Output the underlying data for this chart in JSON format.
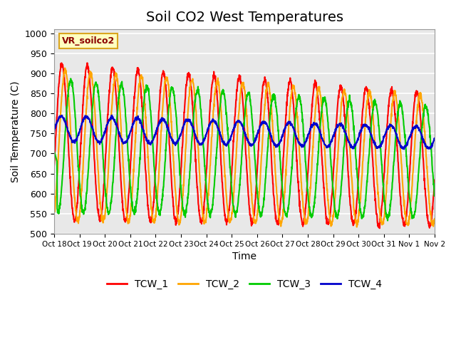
{
  "title": "Soil CO2 West Temperatures",
  "xlabel": "Time",
  "ylabel": "Soil Temperature (C)",
  "ylim": [
    500,
    1010
  ],
  "yticks": [
    500,
    550,
    600,
    650,
    700,
    750,
    800,
    850,
    900,
    950,
    1000
  ],
  "x_tick_labels": [
    "Oct 18",
    "Oct 19",
    "Oct 20",
    "Oct 21",
    "Oct 22",
    "Oct 23",
    "Oct 24",
    "Oct 25",
    "Oct 26",
    "Oct 27",
    "Oct 28",
    "Oct 29",
    "Oct 30",
    "Oct 31",
    "Nov 1",
    "Nov 2"
  ],
  "annotation_text": "VR_soilco2",
  "annotation_color": "#8B0000",
  "annotation_bg": "#FFFFC0",
  "annotation_border": "#DAA520",
  "series_colors": [
    "#FF0000",
    "#FFA500",
    "#00CC00",
    "#0000CC"
  ],
  "series_labels": [
    "TCW_1",
    "TCW_2",
    "TCW_3",
    "TCW_4"
  ],
  "bg_color": "#E8E8E8",
  "grid_color": "#FFFFFF",
  "line_width": 1.5,
  "title_fontsize": 14,
  "num_days": 15
}
